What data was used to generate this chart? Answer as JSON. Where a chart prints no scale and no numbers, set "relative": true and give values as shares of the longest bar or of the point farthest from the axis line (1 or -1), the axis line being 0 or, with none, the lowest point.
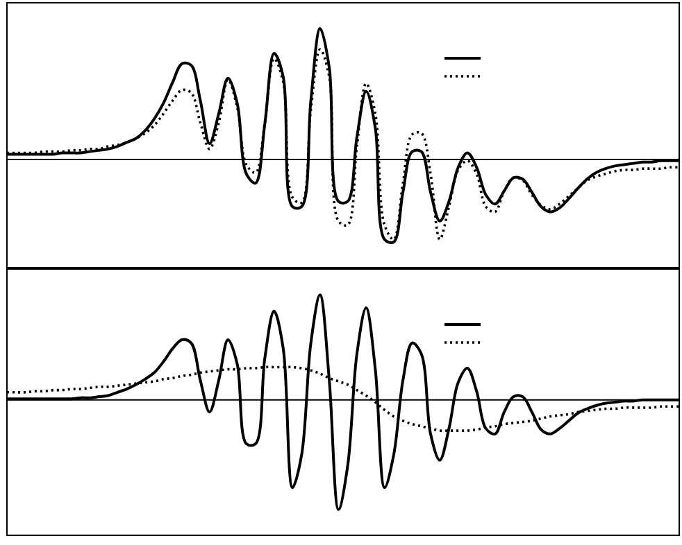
{
  "chart_data": [
    {
      "type": "line",
      "relative": true,
      "categories": [
        null,
        null,
        null,
        null,
        null,
        null,
        null,
        null,
        null,
        null,
        null,
        null,
        null,
        null,
        null,
        null,
        null,
        null,
        null,
        null,
        null,
        null,
        null,
        null,
        null,
        null,
        null,
        null,
        null,
        null,
        null,
        null,
        null,
        null,
        null,
        null,
        null,
        null,
        null,
        null,
        null,
        null,
        null,
        null,
        null,
        null,
        null,
        null,
        null,
        null,
        null,
        null,
        null,
        null,
        null,
        null,
        null,
        null,
        null,
        null,
        null,
        null,
        null,
        null,
        null,
        null,
        null,
        null,
        null,
        null,
        null,
        null,
        null,
        null
      ],
      "series": [
        {
          "color": "#000000",
          "line_style": "solid",
          "values": [
            0.04,
            0.04,
            0.04,
            0.04,
            0.04,
            0.04,
            0.05,
            0.05,
            0.05,
            0.06,
            0.07,
            0.08,
            0.1,
            0.13,
            0.16,
            0.22,
            0.31,
            0.43,
            0.59,
            0.73,
            0.72,
            0.45,
            0.12,
            0.35,
            0.62,
            0.43,
            -0.11,
            -0.18,
            0.27,
            0.81,
            0.63,
            -0.36,
            -0.36,
            0.45,
            1.0,
            0.7,
            -0.32,
            -0.32,
            0.17,
            0.52,
            0.24,
            -0.61,
            -0.63,
            -0.25,
            0.06,
            0.06,
            -0.25,
            -0.47,
            -0.32,
            -0.06,
            0.05,
            -0.06,
            -0.27,
            -0.34,
            -0.24,
            -0.14,
            -0.15,
            -0.25,
            -0.36,
            -0.4,
            -0.37,
            -0.3,
            -0.22,
            -0.15,
            -0.1,
            -0.07,
            -0.05,
            -0.04,
            -0.03,
            -0.02,
            -0.02,
            -0.01,
            -0.01,
            -0.01
          ]
        },
        {
          "color": "#000000",
          "line_style": "dotted",
          "values": [
            0.05,
            0.05,
            0.05,
            0.05,
            0.06,
            0.06,
            0.06,
            0.07,
            0.07,
            0.08,
            0.08,
            0.1,
            0.11,
            0.13,
            0.16,
            0.2,
            0.26,
            0.35,
            0.45,
            0.53,
            0.51,
            0.28,
            0.08,
            0.28,
            0.61,
            0.4,
            -0.04,
            -0.1,
            0.28,
            0.77,
            0.59,
            -0.29,
            -0.33,
            0.38,
            0.84,
            0.63,
            -0.47,
            -0.5,
            0.1,
            0.58,
            0.35,
            -0.5,
            -0.61,
            -0.18,
            0.19,
            0.2,
            -0.11,
            -0.61,
            -0.36,
            -0.08,
            -0.01,
            -0.11,
            -0.36,
            -0.4,
            -0.24,
            -0.14,
            -0.16,
            -0.27,
            -0.35,
            -0.38,
            -0.34,
            -0.28,
            -0.22,
            -0.16,
            -0.13,
            -0.11,
            -0.09,
            -0.08,
            -0.08,
            -0.07,
            -0.07,
            -0.07,
            -0.06,
            -0.06
          ]
        }
      ]
    },
    {
      "type": "line",
      "relative": true,
      "categories": [
        null,
        null,
        null,
        null,
        null,
        null,
        null,
        null,
        null,
        null,
        null,
        null,
        null,
        null,
        null,
        null,
        null,
        null,
        null,
        null,
        null,
        null,
        null,
        null,
        null,
        null,
        null,
        null,
        null,
        null,
        null,
        null,
        null,
        null,
        null,
        null,
        null,
        null,
        null,
        null,
        null,
        null,
        null,
        null,
        null,
        null,
        null,
        null,
        null,
        null,
        null,
        null,
        null,
        null,
        null,
        null,
        null,
        null,
        null,
        null,
        null,
        null,
        null,
        null,
        null,
        null,
        null,
        null,
        null,
        null,
        null,
        null,
        null,
        null
      ],
      "series": [
        {
          "color": "#000000",
          "line_style": "solid",
          "values": [
            0.01,
            0.01,
            0.01,
            0.01,
            0.01,
            0.01,
            0.01,
            0.01,
            0.02,
            0.02,
            0.03,
            0.04,
            0.07,
            0.1,
            0.14,
            0.19,
            0.25,
            0.35,
            0.47,
            0.55,
            0.52,
            0.18,
            -0.11,
            0.18,
            0.55,
            0.33,
            -0.4,
            -0.4,
            0.38,
            0.81,
            0.47,
            -0.8,
            -0.5,
            0.52,
            0.96,
            0.18,
            -1.0,
            -0.6,
            0.42,
            0.84,
            0.28,
            -0.8,
            -0.5,
            0.18,
            0.52,
            0.42,
            -0.31,
            -0.55,
            -0.26,
            0.16,
            0.29,
            0.08,
            -0.26,
            -0.31,
            -0.11,
            0.03,
            0.03,
            -0.11,
            -0.27,
            -0.31,
            -0.26,
            -0.19,
            -0.12,
            -0.08,
            -0.05,
            -0.03,
            -0.02,
            -0.01,
            -0.01,
            0.0,
            0.0,
            0.0,
            0.0,
            0.0
          ]
        },
        {
          "color": "#000000",
          "line_style": "dotted",
          "values": [
            0.07,
            0.07,
            0.07,
            0.08,
            0.08,
            0.09,
            0.09,
            0.1,
            0.1,
            0.11,
            0.12,
            0.12,
            0.13,
            0.14,
            0.15,
            0.16,
            0.17,
            0.19,
            0.2,
            0.22,
            0.23,
            0.25,
            0.26,
            0.27,
            0.28,
            0.28,
            0.29,
            0.29,
            0.3,
            0.3,
            0.3,
            0.3,
            0.29,
            0.27,
            0.24,
            0.2,
            0.17,
            0.14,
            0.09,
            0.04,
            -0.02,
            -0.09,
            -0.15,
            -0.19,
            -0.22,
            -0.24,
            -0.26,
            -0.28,
            -0.28,
            -0.28,
            -0.28,
            -0.27,
            -0.25,
            -0.24,
            -0.22,
            -0.21,
            -0.2,
            -0.19,
            -0.17,
            -0.15,
            -0.14,
            -0.13,
            -0.11,
            -0.1,
            -0.09,
            -0.08,
            -0.08,
            -0.07,
            -0.07,
            -0.07,
            -0.07,
            -0.06,
            -0.06,
            -0.06
          ]
        }
      ]
    }
  ]
}
